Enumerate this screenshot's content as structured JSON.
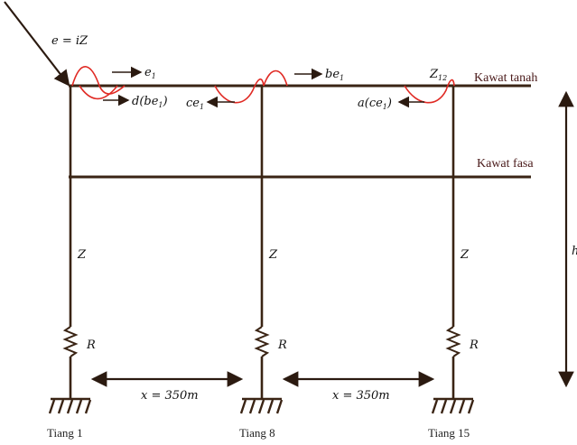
{
  "surge": {
    "label": "e = iZ"
  },
  "wires": {
    "ground": "Kawat tanah",
    "phase": "Kawat fasa"
  },
  "waves": {
    "e1": {
      "base": "e",
      "sub": "1"
    },
    "d_be1": {
      "pre": "d(be",
      "sub": "1",
      "post": ")"
    },
    "ce1": {
      "base": "ce",
      "sub": "1"
    },
    "be1": {
      "base": "be",
      "sub": "1"
    },
    "z12": {
      "base": "Z",
      "sub": "12"
    },
    "a_ce1": {
      "pre": "a(ce",
      "sub": "1",
      "post": ")"
    }
  },
  "towers": [
    {
      "name": "Tiang 1",
      "impedance": "Z",
      "resistance": "R"
    },
    {
      "name": "Tiang 8",
      "impedance": "Z",
      "resistance": "R"
    },
    {
      "name": "Tiang 15",
      "impedance": "Z",
      "resistance": "R"
    }
  ],
  "spans": [
    {
      "label": "x = 350m"
    },
    {
      "label": "x = 350m"
    }
  ],
  "height_label": "h"
}
